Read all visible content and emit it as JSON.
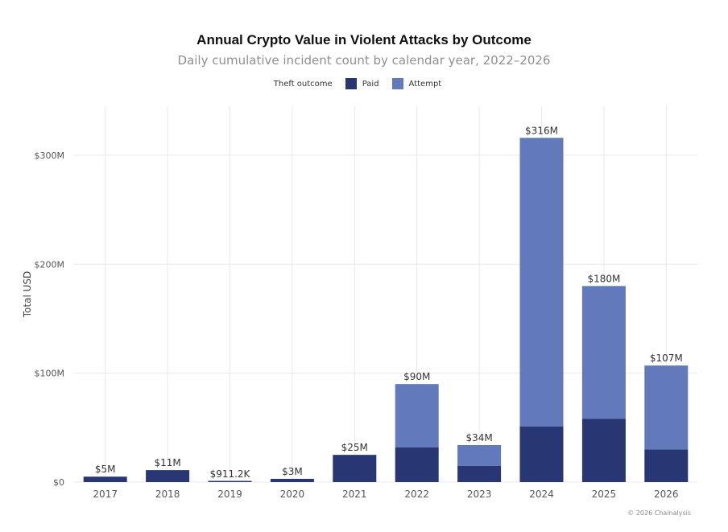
{
  "chart_data": {
    "type": "bar",
    "stacked": true,
    "title": "Annual Crypto Value in Violent Attacks by Outcome",
    "subtitle": "Daily cumulative incident count by calendar year, 2022–2026",
    "ylabel": "Total USD",
    "xlabel": "",
    "ylim": [
      0,
      345000000
    ],
    "yticks": [
      0,
      100000000,
      200000000,
      300000000
    ],
    "ytick_labels": [
      "$0",
      "$100M",
      "$200M",
      "$300M"
    ],
    "grid": true,
    "legend": {
      "title": "Theft outcome",
      "position": "top-center"
    },
    "categories": [
      "2017",
      "2018",
      "2019",
      "2020",
      "2021",
      "2022",
      "2023",
      "2024",
      "2025",
      "2026"
    ],
    "series": [
      {
        "name": "Paid",
        "color": "#283673",
        "values": [
          5000000,
          11000000,
          911200,
          3000000,
          25000000,
          32000000,
          15000000,
          51000000,
          58000000,
          30000000
        ]
      },
      {
        "name": "Attempt",
        "color": "#6279bb",
        "values": [
          0,
          0,
          0,
          0,
          0,
          58000000,
          19000000,
          265000000,
          122000000,
          77000000
        ]
      }
    ],
    "total_labels": [
      "$5M",
      "$11M",
      "$911.2K",
      "$3M",
      "$25M",
      "$90M",
      "$34M",
      "$316M",
      "$180M",
      "$107M"
    ],
    "footer": "© 2026 Chainalysis"
  }
}
